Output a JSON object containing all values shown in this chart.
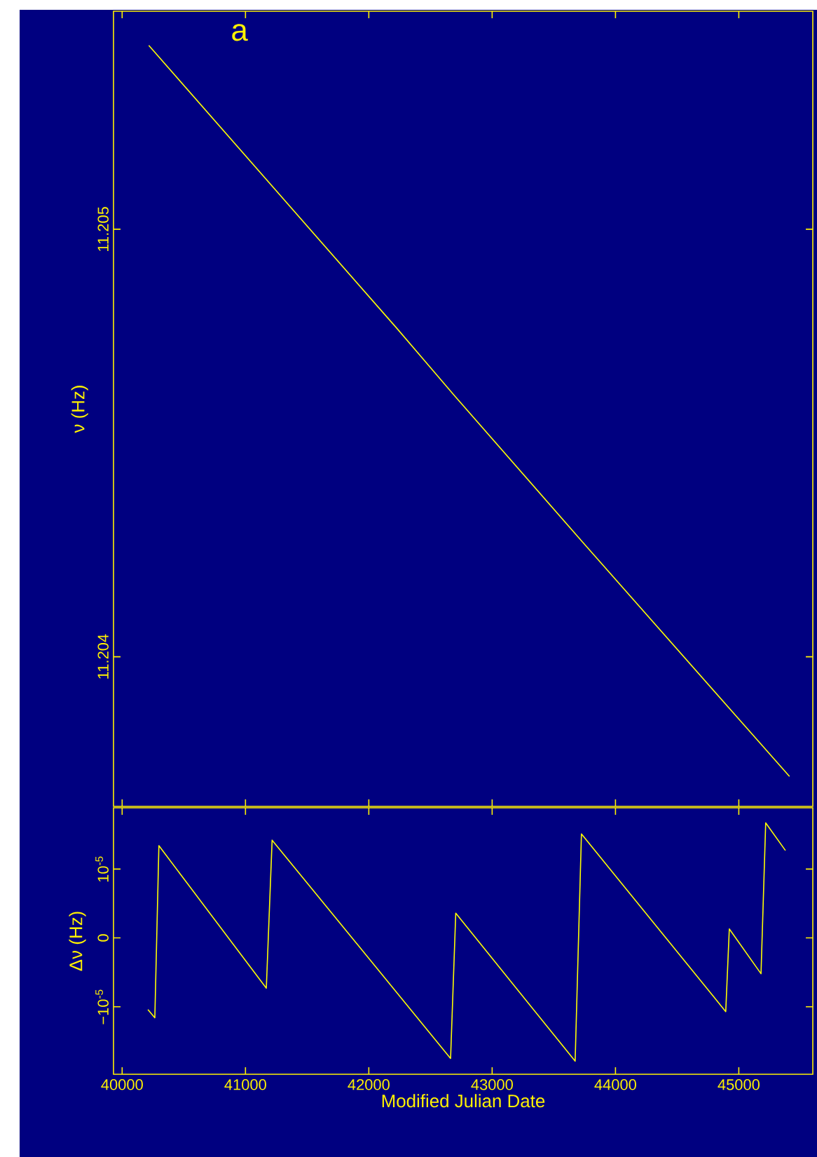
{
  "chart_data": [
    {
      "type": "line",
      "annotations": [
        "a"
      ],
      "ylabel": "ν (Hz)",
      "tick_labels": "y",
      "x": [
        40216,
        42222,
        42697,
        43728,
        45411
      ],
      "series": [
        {
          "color": "#ffff00",
          "values": [
            11.20543,
            11.20477,
            11.20461,
            11.20427,
            11.20372
          ]
        }
      ],
      "xlim": [
        39930,
        45600
      ],
      "ylim": [
        11.20365,
        11.20551
      ],
      "xticks": [
        40000,
        41000,
        42000,
        43000,
        44000,
        45000
      ],
      "yticks": [
        11.204,
        11.205
      ]
    },
    {
      "type": "line",
      "xlabel": "Modified Julian Date",
      "ylabel": "Δν (Hz)",
      "x": [
        40209,
        40265,
        40298,
        41169,
        41216,
        42663,
        42705,
        43673,
        43724,
        44894,
        44923,
        45180,
        45218,
        45378
      ],
      "series": [
        {
          "color": "#ffff00",
          "values": [
            -1.04e-05,
            -1.16e-05,
            1.34e-05,
            -7.3e-06,
            1.42e-05,
            -1.75e-05,
            3.6e-06,
            -1.79e-05,
            1.51e-05,
            -1.07e-05,
            1.3e-06,
            -5.2e-06,
            1.67e-05,
            1.27e-05
          ]
        }
      ],
      "xlim": [
        39930,
        45600
      ],
      "ylim": [
        -1.98e-05,
        1.89e-05
      ],
      "xticks": [
        40000,
        41000,
        42000,
        43000,
        44000,
        45000
      ],
      "yticks": [
        {
          "value": -1e-05,
          "label": "−10$^{-5}$"
        },
        0,
        {
          "value": 1e-05,
          "label": "10$^{-5}$"
        }
      ]
    }
  ]
}
